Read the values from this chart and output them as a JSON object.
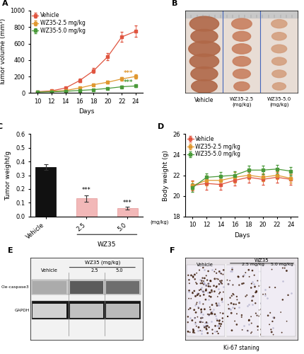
{
  "panel_A": {
    "days": [
      10,
      12,
      14,
      16,
      18,
      20,
      22,
      24
    ],
    "vehicle_mean": [
      15,
      25,
      60,
      150,
      270,
      440,
      680,
      750
    ],
    "vehicle_err": [
      3,
      5,
      10,
      20,
      30,
      45,
      60,
      70
    ],
    "wz25_mean": [
      12,
      18,
      30,
      60,
      100,
      130,
      170,
      200
    ],
    "wz25_err": [
      3,
      4,
      6,
      10,
      14,
      18,
      22,
      28
    ],
    "wz50_mean": [
      10,
      14,
      20,
      30,
      40,
      55,
      75,
      85
    ],
    "wz50_err": [
      2,
      3,
      4,
      5,
      6,
      8,
      10,
      12
    ],
    "ylabel": "Tumor volume (mm³)",
    "xlabel": "Days",
    "ylim": [
      0,
      1000
    ],
    "yticks": [
      0,
      200,
      400,
      600,
      800,
      1000
    ],
    "vehicle_color": "#e05540",
    "wz25_color": "#e09830",
    "wz50_color": "#4a9a3a",
    "label_vehicle": "Vehicle",
    "label_wz25": "WZ35-2.5 mg/kg",
    "label_wz50": "WZ35-5.0 mg/kg"
  },
  "panel_C": {
    "categories": [
      "Vehicle",
      "2.5",
      "5.0"
    ],
    "means": [
      0.36,
      0.13,
      0.06
    ],
    "errors": [
      0.022,
      0.022,
      0.012
    ],
    "bar_colors": [
      "#111111",
      "#f2b8b8",
      "#f2b8b8"
    ],
    "bar_edge_colors": [
      "#111111",
      "#e8a0a0",
      "#e8a0a0"
    ],
    "ylabel": "Tumor weight/g",
    "ylim": [
      0,
      0.6
    ],
    "yticks": [
      0.0,
      0.1,
      0.2,
      0.3,
      0.4,
      0.5,
      0.6
    ]
  },
  "panel_D": {
    "days": [
      10,
      12,
      14,
      16,
      18,
      20,
      22,
      24
    ],
    "vehicle_mean": [
      21.0,
      21.2,
      21.1,
      21.5,
      21.8,
      21.6,
      21.8,
      21.6
    ],
    "vehicle_err": [
      0.5,
      0.6,
      0.5,
      0.5,
      0.5,
      0.5,
      0.5,
      0.5
    ],
    "wz25_mean": [
      21.0,
      21.5,
      21.5,
      21.8,
      22.0,
      21.8,
      22.0,
      21.7
    ],
    "wz25_err": [
      0.4,
      0.5,
      0.4,
      0.5,
      0.4,
      0.4,
      0.4,
      0.4
    ],
    "wz50_mean": [
      20.8,
      21.8,
      21.9,
      22.0,
      22.5,
      22.5,
      22.6,
      22.4
    ],
    "wz50_err": [
      0.4,
      0.4,
      0.4,
      0.4,
      0.4,
      0.4,
      0.4,
      0.4
    ],
    "ylabel": "Body weight (g)",
    "xlabel": "Days",
    "ylim": [
      18,
      26
    ],
    "yticks": [
      18,
      20,
      22,
      24,
      26
    ],
    "vehicle_color": "#e05540",
    "wz25_color": "#e09830",
    "wz50_color": "#4a9a3a",
    "label_vehicle": "Vehicle",
    "label_wz25": "WZ35-2.5 mg/kg",
    "label_wz50": "WZ35-5.0 mg/kg"
  },
  "bg_color": "#ffffff",
  "panel_label_fontsize": 8,
  "axis_fontsize": 6.5,
  "tick_fontsize": 6,
  "legend_fontsize": 5.5
}
